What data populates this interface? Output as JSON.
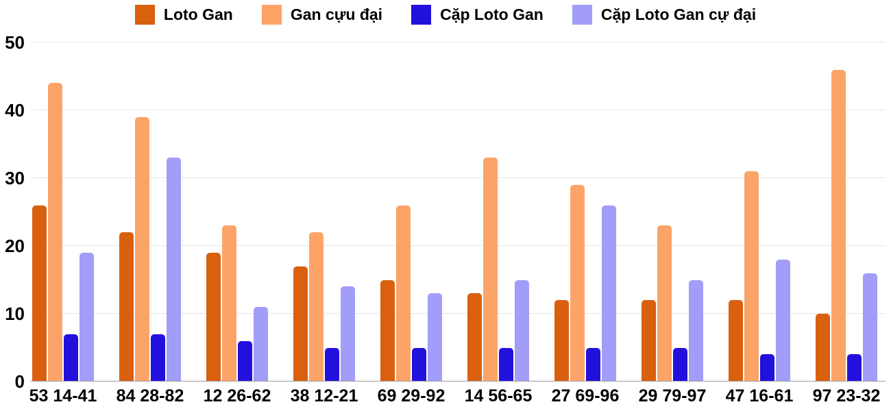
{
  "chart_data": {
    "type": "bar",
    "title": "",
    "xlabel": "",
    "ylabel": "",
    "ylim": [
      0,
      50
    ],
    "yticks": [
      0,
      10,
      20,
      30,
      40,
      50
    ],
    "grid": "horizontal",
    "legend_position": "top",
    "categories": [
      "53 14-41",
      "84 28-82",
      "12 26-62",
      "38 12-21",
      "69 29-92",
      "14 56-65",
      "27 69-96",
      "29 79-97",
      "47 16-61",
      "97 23-32"
    ],
    "series": [
      {
        "name": "Loto Gan",
        "color": "#d9600f",
        "values": [
          26,
          22,
          19,
          17,
          15,
          13,
          12,
          12,
          12,
          10
        ]
      },
      {
        "name": "Gan cựu đại",
        "color": "#fca468",
        "values": [
          44,
          39,
          23,
          22,
          26,
          33,
          29,
          23,
          31,
          46
        ]
      },
      {
        "name": "Cặp Loto Gan",
        "color": "#2211dd",
        "values": [
          7,
          7,
          6,
          5,
          5,
          5,
          5,
          5,
          4,
          4
        ]
      },
      {
        "name": "Cặp Loto Gan cự đại",
        "color": "#a29df8",
        "values": [
          19,
          33,
          11,
          14,
          13,
          15,
          26,
          15,
          18,
          16
        ]
      }
    ]
  },
  "colors": {
    "background": "#ffffff",
    "gridline": "#e6e6e6",
    "baseline": "#9e9e9e",
    "text": "#000000"
  }
}
